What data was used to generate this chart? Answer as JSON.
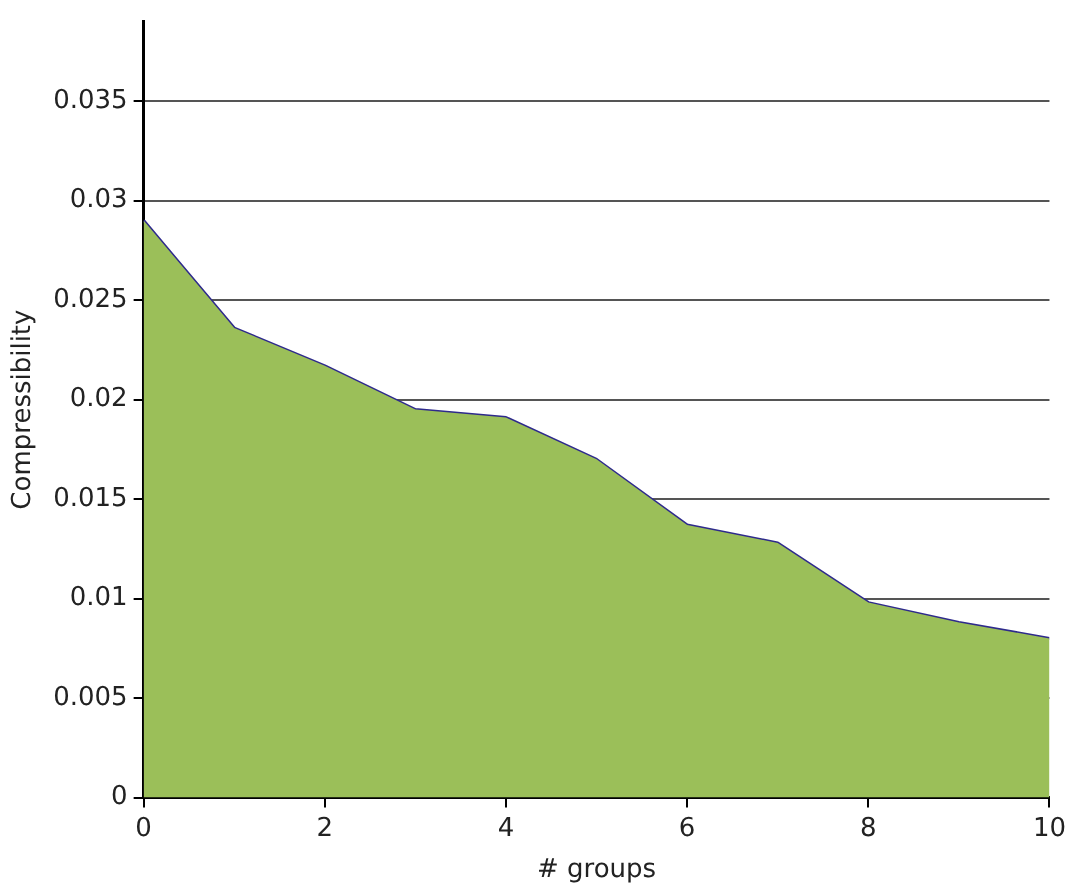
{
  "chart_data": {
    "type": "area",
    "xlabel": "# groups",
    "ylabel": "Compressibility",
    "x": [
      0,
      1,
      2,
      3,
      4,
      5,
      6,
      7,
      8,
      9,
      10
    ],
    "series": [
      {
        "color": "#9bbf59",
        "values": [
          0.029,
          0.0236,
          0.0217,
          0.0195,
          0.0191,
          0.017,
          0.0137,
          0.0128,
          0.0098,
          0.0088,
          0.008
        ]
      },
      {
        "type": "line",
        "color": "#2e2a8c",
        "values": [
          0.029,
          0.0236,
          0.0217,
          0.0195,
          0.0191,
          0.017,
          0.0137,
          0.0128,
          0.0098,
          0.0088,
          0.008
        ]
      }
    ],
    "xlim": [
      0,
      10
    ],
    "xticks": [
      0,
      2,
      4,
      6,
      8,
      10
    ],
    "ylim": [
      0,
      0.039
    ],
    "yticks": [
      0,
      0.005,
      0.01,
      0.015,
      0.02,
      0.025,
      0.03,
      0.035
    ],
    "grid": "y",
    "legend": false
  }
}
